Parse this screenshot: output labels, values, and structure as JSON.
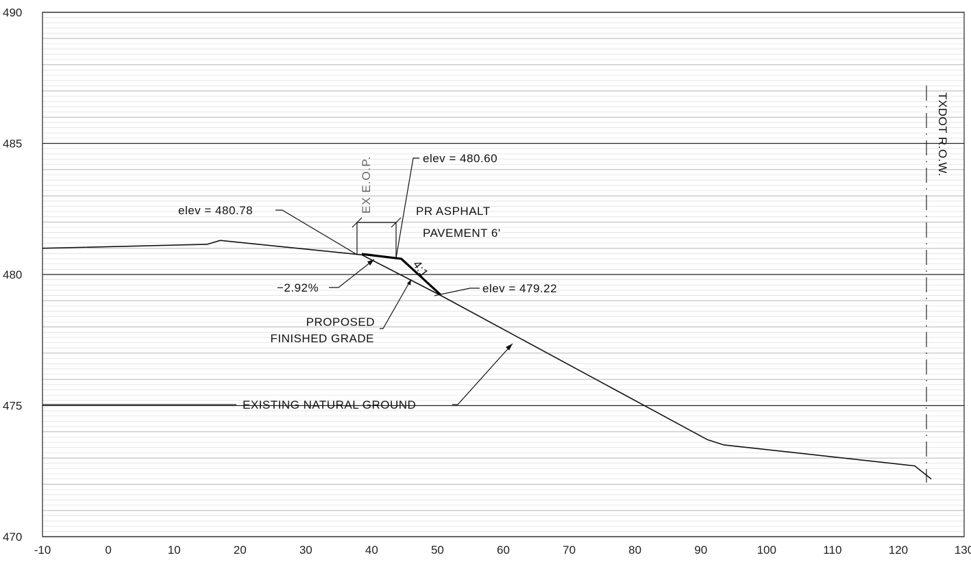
{
  "chart_data": {
    "type": "line",
    "title": "",
    "xlabel": "",
    "ylabel": "",
    "xlim": [
      -10,
      130
    ],
    "ylim": [
      470,
      490
    ],
    "x_ticks": [
      "-10",
      "0",
      "10",
      "20",
      "30",
      "40",
      "50",
      "60",
      "70",
      "80",
      "90",
      "100",
      "110",
      "120",
      "130"
    ],
    "y_ticks": [
      "470",
      "475",
      "480",
      "485",
      "490"
    ],
    "grid": true,
    "series": [
      {
        "name": "EXISTING NATURAL GROUND",
        "points": [
          [
            -10,
            481.0
          ],
          [
            15,
            481.15
          ],
          [
            17,
            481.3
          ],
          [
            38.5,
            480.75
          ],
          [
            50.5,
            479.2
          ],
          [
            91,
            473.7
          ],
          [
            93.5,
            473.5
          ],
          [
            122.5,
            472.7
          ],
          [
            125,
            472.2
          ]
        ]
      },
      {
        "name": "PROPOSED FINISHED GRADE",
        "points": [
          [
            38.5,
            480.78
          ],
          [
            44.5,
            480.6
          ],
          [
            50.5,
            479.22
          ]
        ]
      }
    ],
    "annotations": {
      "elev_left": "elev = 480.78",
      "elev_top": "elev = 480.60",
      "elev_right": "elev = 479.22",
      "pavement_line1": "PR ASPHALT",
      "pavement_line2": "PAVEMENT 6'",
      "slope_pct": "−2.92%",
      "slope_ratio": "4:1",
      "proposed_line1": "PROPOSED",
      "proposed_line2": "FINISHED GRADE",
      "existing_label": "EXISTING NATURAL GROUND",
      "eop_label": "EX E.O.P.",
      "row_label": "TXDOT R.O.W."
    }
  }
}
